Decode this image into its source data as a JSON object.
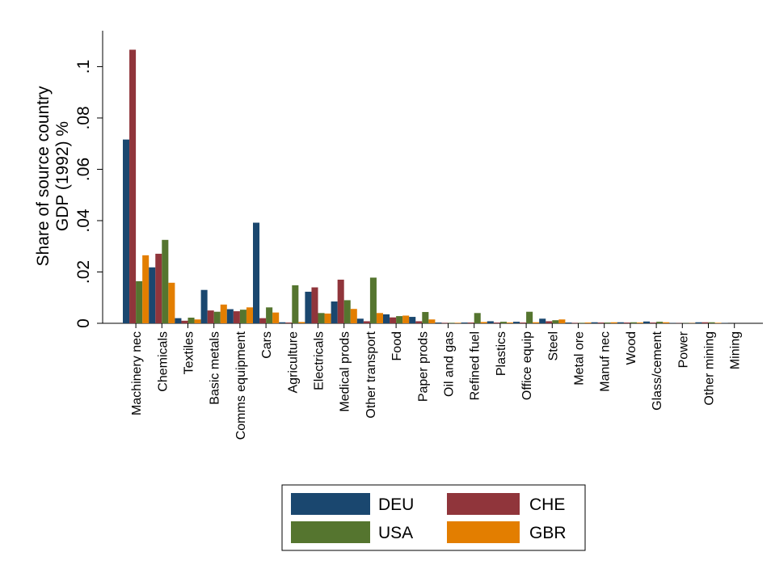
{
  "chart_data": {
    "type": "bar",
    "ylabel": [
      "Share of source country",
      "GDP (1992) %"
    ],
    "categories": [
      "Machinery nec",
      "Chemicals",
      "Textiles",
      "Basic metals",
      "Comms equipment",
      "Cars",
      "Agriculture",
      "Electricals",
      "Medical prods",
      "Other transport",
      "Food",
      "Paper prods",
      "Oil and gas",
      "Refined fuel",
      "Plastics",
      "Office equip",
      "Steel",
      "Metal ore",
      "Manuf nec",
      "Wood",
      "Glass/cement",
      "Power",
      "Other mining",
      "Mining"
    ],
    "series": [
      {
        "name": "DEU",
        "color": "#1a476f",
        "values": [
          0.0716,
          0.0218,
          0.002,
          0.013,
          0.0055,
          0.0392,
          0.0004,
          0.0123,
          0.0085,
          0.0018,
          0.0035,
          0.0025,
          0.0003,
          0.0003,
          0.0008,
          0.0006,
          0.0018,
          0.0003,
          0.0004,
          0.0004,
          0.0007,
          0.0001,
          0.0004,
          0.0001
        ]
      },
      {
        "name": "CHE",
        "color": "#90353b",
        "values": [
          0.1066,
          0.0271,
          0.001,
          0.005,
          0.0047,
          0.002,
          0.0003,
          0.014,
          0.017,
          0.0008,
          0.0023,
          0.0008,
          0.0002,
          0.0003,
          0.0003,
          0.0003,
          0.0008,
          0.0002,
          0.0003,
          0.0003,
          0.0003,
          0.0001,
          0.0004,
          0
        ]
      },
      {
        "name": "USA",
        "color": "#55752f",
        "values": [
          0.0164,
          0.0325,
          0.0022,
          0.0045,
          0.0053,
          0.0062,
          0.0148,
          0.004,
          0.009,
          0.0178,
          0.0028,
          0.0044,
          0.0002,
          0.004,
          0.0006,
          0.0045,
          0.0012,
          0.0002,
          0.0003,
          0.0004,
          0.0006,
          0.0001,
          0.0004,
          0
        ]
      },
      {
        "name": "GBR",
        "color": "#e37e00",
        "values": [
          0.0265,
          0.0158,
          0.0015,
          0.0073,
          0.0062,
          0.0042,
          0.0005,
          0.0038,
          0.0056,
          0.004,
          0.003,
          0.0015,
          0.0002,
          0.0005,
          0.0003,
          0.0004,
          0.0015,
          0.0003,
          0.0004,
          0.0003,
          0.0004,
          0.0001,
          0.0002,
          0
        ]
      }
    ],
    "ylim": [
      0,
      0.114
    ],
    "yticks": [
      0,
      {
        "value": 0.02,
        "label": ".02"
      },
      {
        "value": 0.04,
        "label": ".04"
      },
      {
        "value": 0.06,
        "label": ".06"
      },
      {
        "value": 0.08,
        "label": ".08"
      },
      {
        "value": 0.1,
        "label": ".1"
      }
    ],
    "grid": false,
    "legend": "bottom"
  }
}
